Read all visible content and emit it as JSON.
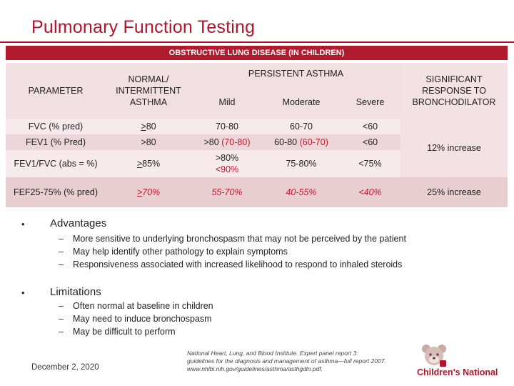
{
  "slide": {
    "title": "Pulmonary Function Testing",
    "date": "December 2, 2020"
  },
  "table": {
    "banner": "OBSTRUCTIVE LUNG DISEASE (IN CHILDREN)",
    "headers": {
      "parameter": "PARAMETER",
      "normal_line1": "NORMAL/",
      "normal_line2": "INTERMITTENT",
      "normal_line3": "ASTHMA",
      "persistent": "PERSISTENT ASTHMA",
      "mild": "Mild",
      "moderate": "Moderate",
      "severe": "Severe",
      "sig_line1": "SIGNIFICANT",
      "sig_line2": "RESPONSE TO",
      "sig_line3": "BRONCHODILATOR"
    },
    "rows": {
      "fvc": {
        "param": "FVC (% pred)",
        "normal_sym": ">",
        "normal_val": "80",
        "mild": "70-80",
        "moderate": "60-70",
        "severe": "<60"
      },
      "fev1": {
        "param": "FEV1 (% Pred)",
        "normal": ">80",
        "mild_a": ">80 ",
        "mild_b": "(70-80)",
        "moderate_a": "60-80 ",
        "moderate_b": "(60-70)",
        "severe": "<60"
      },
      "fev1fvc": {
        "param": "FEV1/FVC (abs = %)",
        "normal_sym": ">",
        "normal_val": "85%",
        "mild_a": ">80%",
        "mild_b": "<90%",
        "moderate": "75-80%",
        "severe": "<75%"
      },
      "fef": {
        "param": "FEF25-75% (% pred)",
        "normal_sym": ">",
        "normal_val": "70%",
        "mild": "55-70%",
        "moderate": "40-55%",
        "severe": "<40%",
        "response": "25% increase"
      },
      "response_fev1": "12% increase"
    }
  },
  "bullets": {
    "advantages": {
      "label": "Advantages",
      "items": [
        "More sensitive to underlying bronchospasm that may not be perceived by the patient",
        "May help identify other pathology to explain symptoms",
        "Responsiveness associated with increased likelihood to respond to inhaled steroids"
      ]
    },
    "limitations": {
      "label": "Limitations",
      "items": [
        "Often normal at baseline in children",
        "May need to induce bronchospasm",
        "May be difficult to perform"
      ]
    },
    "bullet_glyph": "•",
    "dash_glyph": "–"
  },
  "citation": {
    "line1": "National Heart, Lung, and Blood Institute. Expert panel report 3:",
    "line2": "guidelines for the diagnosis and management of asthma—full report 2007.",
    "line3": "www.nhlbi.nih.gov/guidelines/asthma/asthgdln.pdf."
  },
  "logo": {
    "text": "Children's National",
    "icon": "bear-logo-icon"
  },
  "colors": {
    "brand_red": "#b0152b",
    "band_light": "#f6e7e9",
    "band_mid": "#eed5d8",
    "band_dark": "#e6c7cb"
  }
}
